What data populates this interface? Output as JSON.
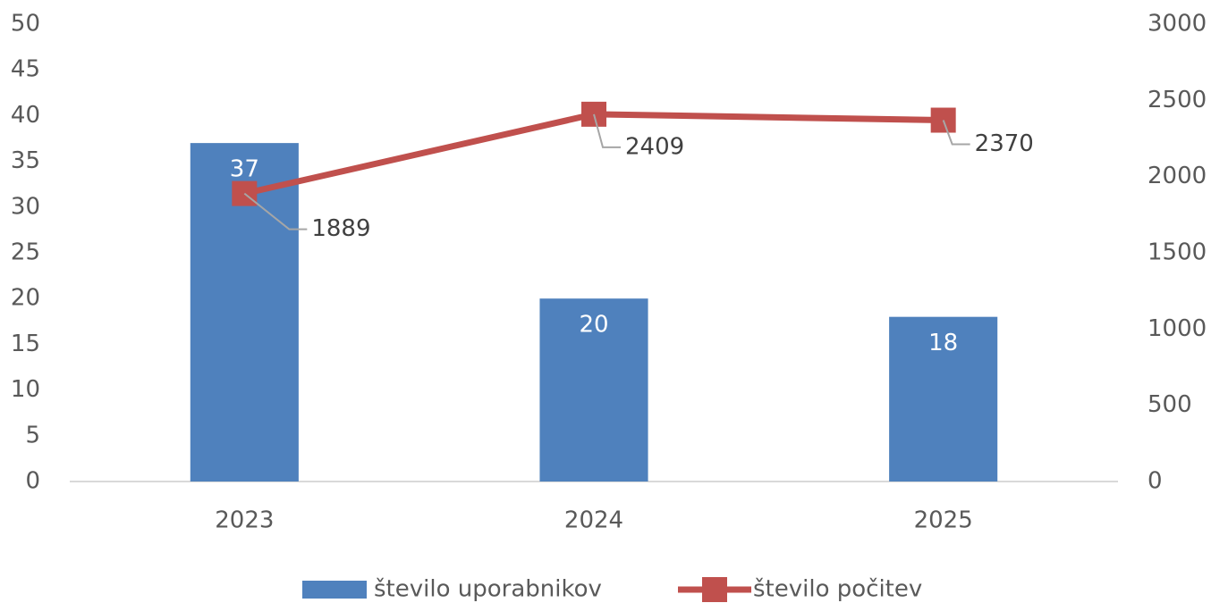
{
  "chart_data": {
    "type": "bar",
    "categories": [
      "2023",
      "2024",
      "2025"
    ],
    "series": [
      {
        "name": "število uporabnikov",
        "type": "bar",
        "color": "#4f81bd",
        "values": [
          37,
          20,
          18
        ]
      },
      {
        "name": "število počitev",
        "type": "line",
        "axis": "y2",
        "color": "#c0504d",
        "values": [
          1889,
          2409,
          2370
        ]
      }
    ],
    "ylim": [
      0,
      50
    ],
    "yticks": [
      0,
      5,
      10,
      15,
      20,
      25,
      30,
      35,
      40,
      45,
      50
    ],
    "y2lim": [
      0,
      3000
    ],
    "y2ticks": [
      0,
      500,
      1000,
      1500,
      2000,
      2500,
      3000
    ],
    "grid": false,
    "legend": "bottom"
  }
}
